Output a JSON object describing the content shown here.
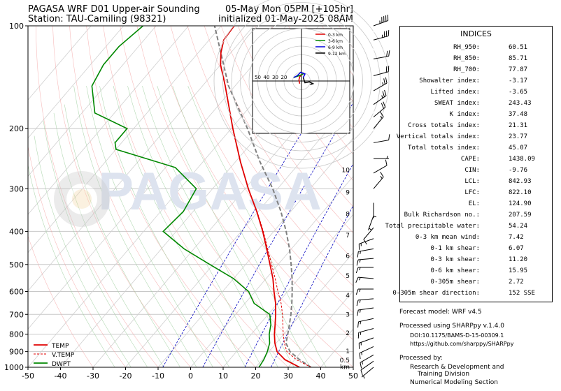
{
  "header": {
    "title_left_1": "PAGASA WRF D01 Upper-air Sounding",
    "title_left_2": "Station: TAU-Camiling (98321)",
    "title_right_1": "05-May Mon 05PM [+105hr]",
    "title_right_2": "initialized 01-May-2025 08AM"
  },
  "watermark": "PAGASA",
  "chart_data": {
    "type": "skew-t",
    "xlim": [
      -50,
      50
    ],
    "plim": [
      1000,
      100
    ],
    "x_ticks": [
      -50,
      -40,
      -30,
      -20,
      -10,
      0,
      10,
      20,
      30,
      40,
      50
    ],
    "p_ticks": [
      100,
      200,
      300,
      400,
      500,
      600,
      700,
      800,
      900,
      1000
    ],
    "height_labels": [
      "km",
      "0.5",
      "1",
      "2",
      "3",
      "4",
      "5",
      "6",
      "7",
      "8",
      "9",
      "10"
    ],
    "height_values": [
      0,
      0.5,
      1,
      2,
      3,
      4,
      5,
      6,
      7,
      8,
      9,
      10
    ],
    "legend": [
      "TEMP",
      "V.TEMP",
      "DWPT"
    ],
    "colors": {
      "temp": "#e00000",
      "vtemp": "#e00000",
      "dwpt": "#008800",
      "parcel": "#808080",
      "dry": "#f4a0a0",
      "moist": "#a0d0a0",
      "mix": "#c0c0e0"
    },
    "temp": [
      [
        1000,
        33.5
      ],
      [
        950,
        27
      ],
      [
        900,
        22.5
      ],
      [
        850,
        19.6
      ],
      [
        800,
        17.1
      ],
      [
        750,
        14.8
      ],
      [
        700,
        12.3
      ],
      [
        650,
        9.4
      ],
      [
        600,
        5.8
      ],
      [
        550,
        2.1
      ],
      [
        500,
        -2.5
      ],
      [
        450,
        -7.6
      ],
      [
        400,
        -13.4
      ],
      [
        350,
        -20.4
      ],
      [
        300,
        -29
      ],
      [
        250,
        -38.5
      ],
      [
        200,
        -49.5
      ],
      [
        150,
        -63
      ],
      [
        130,
        -70
      ],
      [
        120,
        -73
      ],
      [
        110,
        -75.5
      ],
      [
        100,
        -76
      ]
    ],
    "vtemp": [
      [
        1000,
        37
      ],
      [
        950,
        30.5
      ],
      [
        900,
        25.5
      ],
      [
        850,
        22.5
      ],
      [
        800,
        19.8
      ],
      [
        750,
        17.2
      ],
      [
        700,
        14.4
      ],
      [
        650,
        11.1
      ],
      [
        600,
        7
      ],
      [
        550,
        2.8
      ],
      [
        500,
        -2
      ],
      [
        450,
        -7.3
      ],
      [
        400,
        -13.2
      ],
      [
        350,
        -20.3
      ],
      [
        300,
        -29
      ],
      [
        250,
        -38.5
      ],
      [
        200,
        -49.5
      ],
      [
        150,
        -63
      ]
    ],
    "dwpt": [
      [
        1000,
        21
      ],
      [
        950,
        20.5
      ],
      [
        900,
        19.5
      ],
      [
        850,
        18
      ],
      [
        800,
        15.5
      ],
      [
        750,
        13.5
      ],
      [
        700,
        10.5
      ],
      [
        650,
        2.8
      ],
      [
        600,
        -2
      ],
      [
        550,
        -10
      ],
      [
        500,
        -21
      ],
      [
        450,
        -33
      ],
      [
        400,
        -44
      ],
      [
        350,
        -43
      ],
      [
        300,
        -45
      ],
      [
        260,
        -57
      ],
      [
        230,
        -80
      ],
      [
        220,
        -82
      ],
      [
        200,
        -82
      ],
      [
        180,
        -96
      ],
      [
        150,
        -104
      ],
      [
        130,
        -106
      ],
      [
        115,
        -106
      ],
      [
        100,
        -104
      ]
    ],
    "parcel": [
      [
        1000,
        37
      ],
      [
        950,
        31.5
      ],
      [
        900,
        26.5
      ],
      [
        850,
        23
      ],
      [
        800,
        21.2
      ],
      [
        750,
        19.2
      ],
      [
        700,
        17
      ],
      [
        650,
        14.4
      ],
      [
        600,
        11.4
      ],
      [
        550,
        8
      ],
      [
        500,
        4
      ],
      [
        450,
        -0.6
      ],
      [
        400,
        -6.2
      ],
      [
        350,
        -13
      ],
      [
        300,
        -21.5
      ],
      [
        250,
        -32.5
      ],
      [
        200,
        -45
      ],
      [
        150,
        -62
      ],
      [
        100,
        -82
      ]
    ],
    "isotherms": [
      -120,
      -110,
      -100,
      -90,
      -80,
      -70,
      -60,
      -50,
      -40,
      -30,
      -20,
      -10,
      0,
      10,
      20,
      30,
      40,
      50
    ],
    "hodograph": {
      "ring_labels": [
        "50",
        "40",
        "30",
        "20"
      ],
      "legend": [
        "0-3 km",
        "3-6 km",
        "6-9 km",
        "9-12 km"
      ],
      "colors": [
        "#e00000",
        "#008800",
        "#0000dd",
        "#000000"
      ],
      "segments": [
        [
          [
            -2,
            -3
          ],
          [
            -3,
            1
          ],
          [
            -2,
            5
          ],
          [
            0,
            7
          ],
          [
            2,
            8
          ]
        ],
        [
          [
            2,
            8
          ],
          [
            -3,
            6
          ],
          [
            -6,
            5
          ],
          [
            -9,
            4
          ]
        ],
        [
          [
            -9,
            4
          ],
          [
            -5,
            6
          ],
          [
            -1,
            10
          ],
          [
            4,
            8
          ],
          [
            2,
            4
          ]
        ],
        [
          [
            2,
            4
          ],
          [
            4,
            -2
          ],
          [
            9,
            -1
          ],
          [
            13,
            -3
          ],
          [
            10,
            -4
          ]
        ]
      ],
      "range": 60
    },
    "wind_barbs": [
      {
        "p": 100,
        "spd": 45,
        "dir": 70
      },
      {
        "p": 110,
        "spd": 35,
        "dir": 75
      },
      {
        "p": 125,
        "spd": 20,
        "dir": 80
      },
      {
        "p": 140,
        "spd": 20,
        "dir": 75
      },
      {
        "p": 155,
        "spd": 25,
        "dir": 60
      },
      {
        "p": 170,
        "spd": 25,
        "dir": 55
      },
      {
        "p": 185,
        "spd": 20,
        "dir": 50
      },
      {
        "p": 200,
        "spd": 15,
        "dir": 40
      },
      {
        "p": 220,
        "spd": 10,
        "dir": 80
      },
      {
        "p": 245,
        "spd": 5,
        "dir": 90
      },
      {
        "p": 270,
        "spd": 10,
        "dir": 60
      },
      {
        "p": 300,
        "spd": 15,
        "dir": 40
      },
      {
        "p": 330,
        "spd": 5,
        "dir": 180
      },
      {
        "p": 360,
        "spd": 5,
        "dir": 200
      },
      {
        "p": 390,
        "spd": 10,
        "dir": 220
      },
      {
        "p": 420,
        "spd": 15,
        "dir": 250
      },
      {
        "p": 450,
        "spd": 15,
        "dir": 260
      },
      {
        "p": 480,
        "spd": 15,
        "dir": 265
      },
      {
        "p": 510,
        "spd": 15,
        "dir": 270
      },
      {
        "p": 550,
        "spd": 15,
        "dir": 275
      },
      {
        "p": 590,
        "spd": 15,
        "dir": 270
      },
      {
        "p": 630,
        "spd": 15,
        "dir": 265
      },
      {
        "p": 670,
        "spd": 15,
        "dir": 262
      },
      {
        "p": 720,
        "spd": 15,
        "dir": 258
      },
      {
        "p": 770,
        "spd": 15,
        "dir": 255
      },
      {
        "p": 820,
        "spd": 15,
        "dir": 250
      },
      {
        "p": 870,
        "spd": 15,
        "dir": 245
      },
      {
        "p": 920,
        "spd": 15,
        "dir": 240
      },
      {
        "p": 960,
        "spd": 10,
        "dir": 235
      },
      {
        "p": 1000,
        "spd": 5,
        "dir": 230
      }
    ]
  },
  "indices": {
    "title": "INDICES",
    "rows": [
      {
        "label": "RH_950:",
        "value": "60.51"
      },
      {
        "label": "RH_850:",
        "value": "85.71"
      },
      {
        "label": "RH_700:",
        "value": "77.87"
      },
      {
        "label": "Showalter index:",
        "value": "-3.17"
      },
      {
        "label": "Lifted index:",
        "value": "-3.65"
      },
      {
        "label": "SWEAT index:",
        "value": "243.43"
      },
      {
        "label": "K index:",
        "value": "37.48"
      },
      {
        "label": "Cross totals index:",
        "value": "21.31"
      },
      {
        "label": "Vertical totals index:",
        "value": "23.77"
      },
      {
        "label": "Total totals index:",
        "value": "45.07"
      },
      {
        "label": "CAPE:",
        "value": "1438.09"
      },
      {
        "label": "CIN:",
        "value": "-9.76"
      },
      {
        "label": "LCL:",
        "value": "842.93"
      },
      {
        "label": "LFC:",
        "value": "822.10"
      },
      {
        "label": "EL:",
        "value": "124.90"
      },
      {
        "label": "Bulk Richardson no.:",
        "value": "207.59"
      },
      {
        "label": "Total precipitable water:",
        "value": "54.24"
      },
      {
        "label": "0-3 km mean wind:",
        "value": "7.42"
      },
      {
        "label": "0-1 km shear:",
        "value": "6.07"
      },
      {
        "label": "0-3 km shear:",
        "value": "11.20"
      },
      {
        "label": "0-6 km shear:",
        "value": "15.95"
      },
      {
        "label": "0-305m shear:",
        "value": "2.72"
      },
      {
        "label": "0-305m shear direction:",
        "value": "152 SSE"
      }
    ]
  },
  "footer": {
    "forecast_model": "Forecast model: WRF v4.5",
    "processed_using": "Processed using SHARPpy v.1.4.0",
    "doi": "DOI:10.1175/BAMS-D-15-00309.1",
    "github": "https://github.com/sharppy/SHARPpy",
    "processed_by": "Processed by:",
    "division_1": "Research & Development and",
    "division_2": "Training Division",
    "section": "Numerical Modeling Section"
  }
}
